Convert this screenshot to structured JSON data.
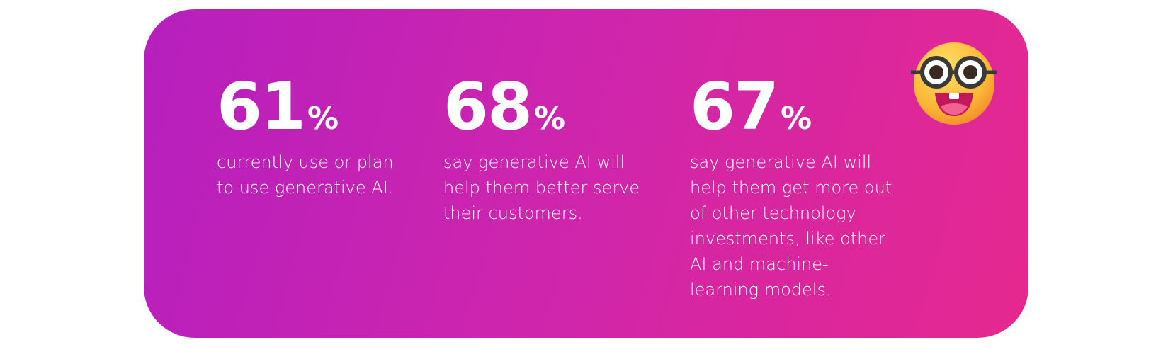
{
  "stats": [
    {
      "value": 61,
      "unit": "%",
      "lines": [
        "currently use or plan",
        "to use generative AI."
      ]
    },
    {
      "value": 68,
      "unit": "%",
      "lines": [
        "say generative AI will",
        "help them better serve",
        "their customers."
      ]
    },
    {
      "value": 67,
      "unit": "%",
      "lines": [
        "say generative AI will",
        "help them get more out",
        "of other technology",
        "investments, like other",
        "AI and machine-",
        "learning models."
      ]
    }
  ]
}
